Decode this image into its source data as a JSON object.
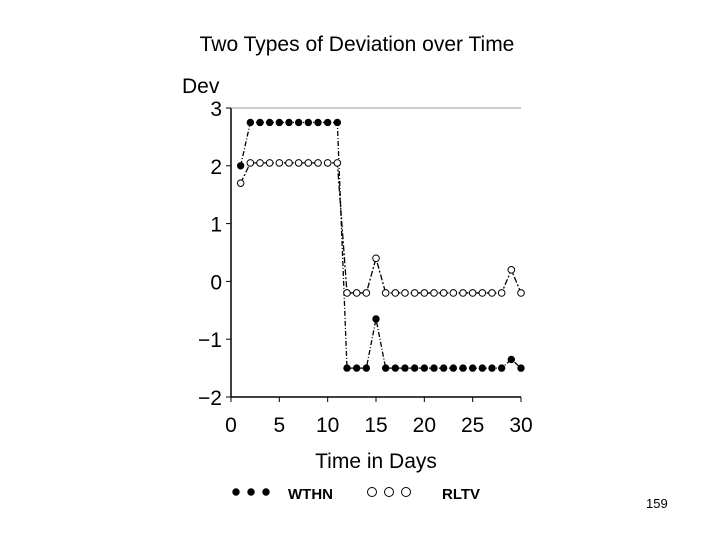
{
  "page_number": "159",
  "chart_data": {
    "type": "line",
    "title": "Two Types of Deviation over Time",
    "xlabel": "Time in Days",
    "ylabel": "Dev",
    "xlim": [
      0,
      30
    ],
    "ylim": [
      -2,
      3
    ],
    "xticks": [
      0,
      5,
      10,
      15,
      20,
      25,
      30
    ],
    "yticks": [
      3,
      2,
      1,
      0,
      -1,
      -2
    ],
    "ytick_labels": [
      "3",
      "2",
      "1",
      "0",
      "−1",
      "−2"
    ],
    "grid": false,
    "legend_position": "bottom",
    "series": [
      {
        "name": "WTHN",
        "marker": "filled-circle",
        "legend_symbol": "● ● ●",
        "color": "#000000",
        "x": [
          1,
          2,
          3,
          4,
          5,
          6,
          7,
          8,
          9,
          10,
          11,
          12,
          13,
          14,
          15,
          16,
          17,
          18,
          19,
          20,
          21,
          22,
          23,
          24,
          25,
          26,
          27,
          28,
          29,
          30
        ],
        "y": [
          2.0,
          2.75,
          2.75,
          2.75,
          2.75,
          2.75,
          2.75,
          2.75,
          2.75,
          2.75,
          2.75,
          -1.5,
          -1.5,
          -1.5,
          -0.65,
          -1.5,
          -1.5,
          -1.5,
          -1.5,
          -1.5,
          -1.5,
          -1.5,
          -1.5,
          -1.5,
          -1.5,
          -1.5,
          -1.5,
          -1.5,
          -1.35,
          -1.5
        ]
      },
      {
        "name": "RLTV",
        "marker": "open-circle",
        "legend_symbol": "○ ○ ○",
        "color": "#000000",
        "x": [
          1,
          2,
          3,
          4,
          5,
          6,
          7,
          8,
          9,
          10,
          11,
          12,
          13,
          14,
          15,
          16,
          17,
          18,
          19,
          20,
          21,
          22,
          23,
          24,
          25,
          26,
          27,
          28,
          29,
          30
        ],
        "y": [
          1.7,
          2.05,
          2.05,
          2.05,
          2.05,
          2.05,
          2.05,
          2.05,
          2.05,
          2.05,
          2.05,
          -0.2,
          -0.2,
          -0.2,
          0.4,
          -0.2,
          -0.2,
          -0.2,
          -0.2,
          -0.2,
          -0.2,
          -0.2,
          -0.2,
          -0.2,
          -0.2,
          -0.2,
          -0.2,
          -0.2,
          0.2,
          -0.2
        ]
      }
    ]
  }
}
